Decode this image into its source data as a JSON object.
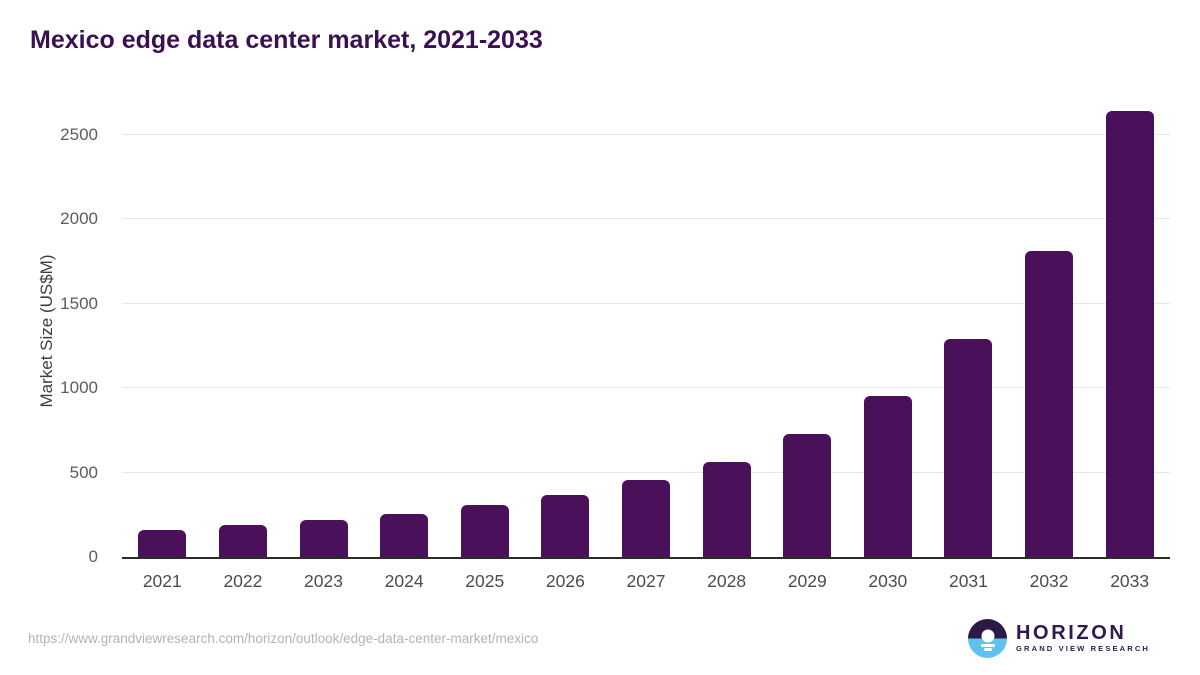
{
  "title": "Mexico edge data center market, 2021-2033",
  "chart_data": {
    "type": "bar",
    "title": "Mexico edge data center market, 2021-2033",
    "categories": [
      "2021",
      "2022",
      "2023",
      "2024",
      "2025",
      "2026",
      "2027",
      "2028",
      "2029",
      "2030",
      "2031",
      "2032",
      "2033"
    ],
    "values": [
      160,
      188,
      217,
      253,
      306,
      365,
      455,
      565,
      727,
      956,
      1293,
      1814,
      2642
    ],
    "xlabel": "",
    "ylabel": "Market Size (US$M)",
    "ylim": [
      0,
      2700
    ],
    "yticks": [
      0,
      500,
      1000,
      1500,
      2000,
      2500
    ],
    "grid": true,
    "legend": "none",
    "bar_color": "#4a105a"
  },
  "colors": {
    "title": "#3a1053",
    "bar": "#4a105a",
    "gridline": "#e7e7e7",
    "axis_line": "#2b2b2b",
    "tick_label": "#5c5c5c",
    "footer_url": "#b3b3b3",
    "logo_navy": "#2c1a44",
    "logo_blue": "#5cc2f0"
  },
  "footer": {
    "source_url": "https://www.grandviewresearch.com/horizon/outlook/edge-data-center-market/mexico",
    "logo_name": "HORIZON",
    "logo_subtitle": "GRAND VIEW RESEARCH"
  }
}
